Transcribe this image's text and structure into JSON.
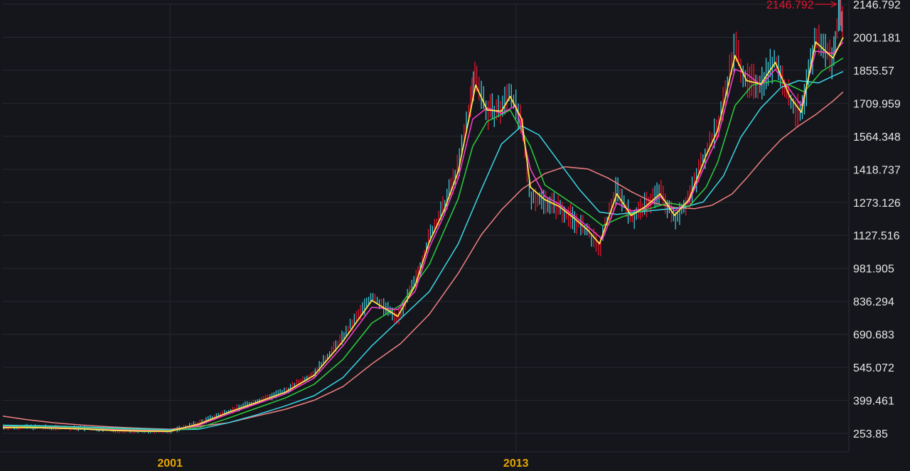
{
  "chart_data": {
    "type": "line",
    "title": "",
    "xlabel": "",
    "ylabel": "",
    "x_ticks": [
      "2001",
      "2013"
    ],
    "y_ticks": [
      253.85,
      399.461,
      545.072,
      690.683,
      836.294,
      981.905,
      1127.516,
      1273.126,
      1418.737,
      1564.348,
      1709.959,
      1855.57,
      2001.181,
      2146.792
    ],
    "y_tick_labels": [
      "253.85",
      "399.461",
      "545.072",
      "690.683",
      "836.294",
      "981.905",
      "1127.516",
      "1273.126",
      "1418.737",
      "1564.348",
      "1709.959",
      "1855.57",
      "2001.181",
      "2146.792"
    ],
    "ylim": [
      253.85,
      2146.792
    ],
    "xlim": [
      1995.2,
      2024.5
    ],
    "grid": true,
    "peak_annotation": {
      "x": 2024.22,
      "y": 2146.792,
      "label": "2146.792"
    },
    "colors": {
      "background": "#14161b",
      "grid": "#262930",
      "price_up": "#e8132e",
      "price_down": "#3fc7d9",
      "ma_short": "#ffe24a",
      "ma_mid1": "#ff3fd6",
      "ma_mid2": "#2ecc40",
      "ma_long1": "#3ad6e6",
      "ma_long2": "#f08080",
      "x_tick_text": "#e8a400",
      "y_tick_text": "#e6e6e6",
      "annotation": "#e8132e"
    },
    "series": [
      {
        "key": "price",
        "values": [
          [
            1995.2,
            280
          ],
          [
            1996,
            282
          ],
          [
            1997,
            279
          ],
          [
            1998,
            275
          ],
          [
            1999,
            268
          ],
          [
            2000,
            265
          ],
          [
            2001,
            262
          ],
          [
            2002,
            300
          ],
          [
            2003,
            350
          ],
          [
            2004,
            395
          ],
          [
            2005,
            440
          ],
          [
            2006,
            520
          ],
          [
            2007,
            680
          ],
          [
            2008,
            860
          ],
          [
            2008.9,
            760
          ],
          [
            2009.5,
            920
          ],
          [
            2010,
            1120
          ],
          [
            2010.5,
            1250
          ],
          [
            2011,
            1430
          ],
          [
            2011.4,
            1700
          ],
          [
            2011.6,
            1850
          ],
          [
            2012,
            1670
          ],
          [
            2012.5,
            1680
          ],
          [
            2012.8,
            1770
          ],
          [
            2013.2,
            1610
          ],
          [
            2013.5,
            1300
          ],
          [
            2014,
            1280
          ],
          [
            2014.5,
            1250
          ],
          [
            2015,
            1200
          ],
          [
            2015.5,
            1140
          ],
          [
            2015.9,
            1070
          ],
          [
            2016.5,
            1340
          ],
          [
            2017,
            1200
          ],
          [
            2017.5,
            1260
          ],
          [
            2018,
            1320
          ],
          [
            2018.5,
            1200
          ],
          [
            2019,
            1290
          ],
          [
            2019.6,
            1500
          ],
          [
            2020,
            1600
          ],
          [
            2020.6,
            1960
          ],
          [
            2021,
            1800
          ],
          [
            2021.5,
            1800
          ],
          [
            2022,
            1900
          ],
          [
            2022.5,
            1720
          ],
          [
            2022.9,
            1650
          ],
          [
            2023.4,
            2000
          ],
          [
            2024,
            1900
          ],
          [
            2024.22,
            2146.792
          ],
          [
            2024.35,
            2050
          ]
        ]
      },
      {
        "key": "ma_short",
        "values": [
          [
            1995.2,
            279
          ],
          [
            1996,
            280
          ],
          [
            1997,
            277
          ],
          [
            1998,
            273
          ],
          [
            1999,
            267
          ],
          [
            2000,
            264
          ],
          [
            2001,
            263
          ],
          [
            2002,
            295
          ],
          [
            2003,
            345
          ],
          [
            2004,
            390
          ],
          [
            2005,
            435
          ],
          [
            2006,
            510
          ],
          [
            2007,
            660
          ],
          [
            2008,
            840
          ],
          [
            2008.9,
            770
          ],
          [
            2009.5,
            905
          ],
          [
            2010,
            1100
          ],
          [
            2010.5,
            1235
          ],
          [
            2011,
            1410
          ],
          [
            2011.4,
            1660
          ],
          [
            2011.6,
            1790
          ],
          [
            2012,
            1680
          ],
          [
            2012.5,
            1675
          ],
          [
            2012.8,
            1740
          ],
          [
            2013.2,
            1640
          ],
          [
            2013.5,
            1340
          ],
          [
            2014,
            1285
          ],
          [
            2014.5,
            1255
          ],
          [
            2015,
            1205
          ],
          [
            2015.5,
            1150
          ],
          [
            2015.9,
            1090
          ],
          [
            2016.5,
            1310
          ],
          [
            2017,
            1215
          ],
          [
            2017.5,
            1255
          ],
          [
            2018,
            1310
          ],
          [
            2018.5,
            1215
          ],
          [
            2019,
            1285
          ],
          [
            2019.6,
            1480
          ],
          [
            2020,
            1590
          ],
          [
            2020.6,
            1920
          ],
          [
            2021,
            1810
          ],
          [
            2021.5,
            1795
          ],
          [
            2022,
            1890
          ],
          [
            2022.5,
            1740
          ],
          [
            2022.9,
            1670
          ],
          [
            2023.4,
            1980
          ],
          [
            2024,
            1910
          ],
          [
            2024.35,
            2000
          ]
        ]
      },
      {
        "key": "ma_mid1",
        "values": [
          [
            1995.2,
            282
          ],
          [
            1997,
            279
          ],
          [
            1999,
            270
          ],
          [
            2001,
            264
          ],
          [
            2002,
            290
          ],
          [
            2003,
            338
          ],
          [
            2004,
            384
          ],
          [
            2005,
            428
          ],
          [
            2006,
            498
          ],
          [
            2007,
            640
          ],
          [
            2008,
            810
          ],
          [
            2008.9,
            800
          ],
          [
            2009.5,
            880
          ],
          [
            2010,
            1075
          ],
          [
            2010.5,
            1215
          ],
          [
            2011,
            1380
          ],
          [
            2011.5,
            1640
          ],
          [
            2012,
            1690
          ],
          [
            2012.5,
            1665
          ],
          [
            2013,
            1700
          ],
          [
            2013.5,
            1420
          ],
          [
            2014,
            1300
          ],
          [
            2014.5,
            1265
          ],
          [
            2015,
            1215
          ],
          [
            2015.5,
            1165
          ],
          [
            2016,
            1110
          ],
          [
            2016.5,
            1270
          ],
          [
            2017,
            1235
          ],
          [
            2017.5,
            1245
          ],
          [
            2018,
            1300
          ],
          [
            2018.5,
            1235
          ],
          [
            2019,
            1275
          ],
          [
            2019.6,
            1450
          ],
          [
            2020,
            1560
          ],
          [
            2020.6,
            1860
          ],
          [
            2021,
            1840
          ],
          [
            2021.5,
            1790
          ],
          [
            2022,
            1860
          ],
          [
            2022.5,
            1770
          ],
          [
            2022.9,
            1700
          ],
          [
            2023.4,
            1940
          ],
          [
            2024,
            1930
          ],
          [
            2024.35,
            1980
          ]
        ]
      },
      {
        "key": "ma_mid2",
        "values": [
          [
            1995.2,
            285
          ],
          [
            1997,
            281
          ],
          [
            1999,
            274
          ],
          [
            2001,
            266
          ],
          [
            2002,
            278
          ],
          [
            2003,
            320
          ],
          [
            2004,
            365
          ],
          [
            2005,
            410
          ],
          [
            2006,
            470
          ],
          [
            2007,
            580
          ],
          [
            2008,
            740
          ],
          [
            2009,
            820
          ],
          [
            2010,
            1000
          ],
          [
            2011,
            1290
          ],
          [
            2011.5,
            1520
          ],
          [
            2012,
            1630
          ],
          [
            2012.8,
            1680
          ],
          [
            2013.5,
            1520
          ],
          [
            2014,
            1350
          ],
          [
            2014.7,
            1290
          ],
          [
            2015.5,
            1220
          ],
          [
            2016,
            1170
          ],
          [
            2016.7,
            1210
          ],
          [
            2017.5,
            1240
          ],
          [
            2018.3,
            1270
          ],
          [
            2019,
            1255
          ],
          [
            2019.6,
            1340
          ],
          [
            2020,
            1450
          ],
          [
            2020.6,
            1700
          ],
          [
            2021.2,
            1790
          ],
          [
            2022,
            1810
          ],
          [
            2022.5,
            1790
          ],
          [
            2023,
            1760
          ],
          [
            2023.6,
            1850
          ],
          [
            2024.35,
            1910
          ]
        ]
      },
      {
        "key": "ma_long1",
        "values": [
          [
            1995.2,
            290
          ],
          [
            1997,
            286
          ],
          [
            1999,
            278
          ],
          [
            2001,
            270
          ],
          [
            2002,
            272
          ],
          [
            2003,
            300
          ],
          [
            2004,
            335
          ],
          [
            2005,
            375
          ],
          [
            2006,
            420
          ],
          [
            2007,
            500
          ],
          [
            2008,
            640
          ],
          [
            2009,
            760
          ],
          [
            2010,
            880
          ],
          [
            2011,
            1090
          ],
          [
            2011.8,
            1330
          ],
          [
            2012.5,
            1530
          ],
          [
            2013.2,
            1610
          ],
          [
            2013.8,
            1570
          ],
          [
            2014.5,
            1450
          ],
          [
            2015.2,
            1330
          ],
          [
            2015.9,
            1230
          ],
          [
            2016.5,
            1220
          ],
          [
            2017.2,
            1230
          ],
          [
            2018,
            1240
          ],
          [
            2018.8,
            1250
          ],
          [
            2019.5,
            1275
          ],
          [
            2020.2,
            1390
          ],
          [
            2020.8,
            1560
          ],
          [
            2021.5,
            1690
          ],
          [
            2022.2,
            1780
          ],
          [
            2022.8,
            1810
          ],
          [
            2023.5,
            1800
          ],
          [
            2024,
            1830
          ],
          [
            2024.35,
            1850
          ]
        ]
      },
      {
        "key": "ma_long2",
        "values": [
          [
            1995.2,
            330
          ],
          [
            1996,
            315
          ],
          [
            1997,
            300
          ],
          [
            1998,
            290
          ],
          [
            1999,
            282
          ],
          [
            2000,
            276
          ],
          [
            2001,
            272
          ],
          [
            2002,
            285
          ],
          [
            2003,
            300
          ],
          [
            2004,
            330
          ],
          [
            2005,
            360
          ],
          [
            2006,
            400
          ],
          [
            2007,
            460
          ],
          [
            2008,
            560
          ],
          [
            2009,
            650
          ],
          [
            2010,
            780
          ],
          [
            2011,
            960
          ],
          [
            2011.8,
            1130
          ],
          [
            2012.5,
            1240
          ],
          [
            2013.2,
            1330
          ],
          [
            2014,
            1400
          ],
          [
            2014.7,
            1430
          ],
          [
            2015.5,
            1420
          ],
          [
            2016.2,
            1380
          ],
          [
            2017,
            1320
          ],
          [
            2017.8,
            1270
          ],
          [
            2018.5,
            1250
          ],
          [
            2019.2,
            1245
          ],
          [
            2019.8,
            1260
          ],
          [
            2020.5,
            1310
          ],
          [
            2021,
            1380
          ],
          [
            2021.6,
            1470
          ],
          [
            2022.2,
            1550
          ],
          [
            2022.8,
            1610
          ],
          [
            2023.4,
            1660
          ],
          [
            2024,
            1720
          ],
          [
            2024.35,
            1760
          ]
        ]
      }
    ]
  }
}
